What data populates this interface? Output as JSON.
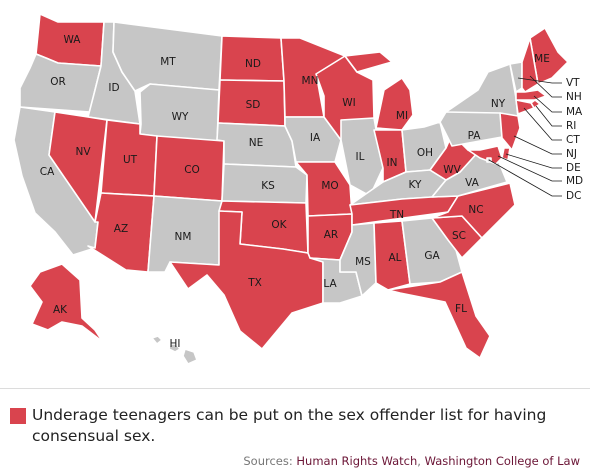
{
  "colors": {
    "highlight": "#d9444e",
    "other": "#c6c6c6",
    "source_link": "#6b1536"
  },
  "states": [
    {
      "abbr": "WA",
      "label": "WA",
      "highlighted": true
    },
    {
      "abbr": "OR",
      "label": "OR",
      "highlighted": false
    },
    {
      "abbr": "CA",
      "label": "CA",
      "highlighted": false
    },
    {
      "abbr": "ID",
      "label": "ID",
      "highlighted": false
    },
    {
      "abbr": "NV",
      "label": "NV",
      "highlighted": true
    },
    {
      "abbr": "MT",
      "label": "MT",
      "highlighted": false
    },
    {
      "abbr": "WY",
      "label": "WY",
      "highlighted": false
    },
    {
      "abbr": "UT",
      "label": "UT",
      "highlighted": true
    },
    {
      "abbr": "AZ",
      "label": "AZ",
      "highlighted": true
    },
    {
      "abbr": "CO",
      "label": "CO",
      "highlighted": true
    },
    {
      "abbr": "NM",
      "label": "NM",
      "highlighted": false
    },
    {
      "abbr": "ND",
      "label": "ND",
      "highlighted": true
    },
    {
      "abbr": "SD",
      "label": "SD",
      "highlighted": true
    },
    {
      "abbr": "NE",
      "label": "NE",
      "highlighted": false
    },
    {
      "abbr": "KS",
      "label": "KS",
      "highlighted": false
    },
    {
      "abbr": "OK",
      "label": "OK",
      "highlighted": true
    },
    {
      "abbr": "TX",
      "label": "TX",
      "highlighted": true
    },
    {
      "abbr": "MN",
      "label": "MN",
      "highlighted": true
    },
    {
      "abbr": "IA",
      "label": "IA",
      "highlighted": false
    },
    {
      "abbr": "MO",
      "label": "MO",
      "highlighted": true
    },
    {
      "abbr": "AR",
      "label": "AR",
      "highlighted": true
    },
    {
      "abbr": "LA",
      "label": "LA",
      "highlighted": false
    },
    {
      "abbr": "WI",
      "label": "WI",
      "highlighted": true
    },
    {
      "abbr": "IL",
      "label": "IL",
      "highlighted": false
    },
    {
      "abbr": "MI",
      "label": "MI",
      "highlighted": true
    },
    {
      "abbr": "IN",
      "label": "IN",
      "highlighted": true
    },
    {
      "abbr": "OH",
      "label": "OH",
      "highlighted": false
    },
    {
      "abbr": "KY",
      "label": "KY",
      "highlighted": false
    },
    {
      "abbr": "TN",
      "label": "TN",
      "highlighted": true
    },
    {
      "abbr": "MS",
      "label": "MS",
      "highlighted": false
    },
    {
      "abbr": "AL",
      "label": "AL",
      "highlighted": true
    },
    {
      "abbr": "GA",
      "label": "GA",
      "highlighted": false
    },
    {
      "abbr": "FL",
      "label": "FL",
      "highlighted": true
    },
    {
      "abbr": "SC",
      "label": "SC",
      "highlighted": true
    },
    {
      "abbr": "NC",
      "label": "NC",
      "highlighted": true
    },
    {
      "abbr": "VA",
      "label": "VA",
      "highlighted": false
    },
    {
      "abbr": "WV",
      "label": "WV",
      "highlighted": true
    },
    {
      "abbr": "PA",
      "label": "PA",
      "highlighted": false
    },
    {
      "abbr": "NY",
      "label": "NY",
      "highlighted": false
    },
    {
      "abbr": "ME",
      "label": "ME",
      "highlighted": true
    },
    {
      "abbr": "VT",
      "label": "VT",
      "highlighted": false
    },
    {
      "abbr": "NH",
      "label": "NH",
      "highlighted": true
    },
    {
      "abbr": "MA",
      "label": "MA",
      "highlighted": true
    },
    {
      "abbr": "RI",
      "label": "RI",
      "highlighted": true
    },
    {
      "abbr": "CT",
      "label": "CT",
      "highlighted": true
    },
    {
      "abbr": "NJ",
      "label": "NJ",
      "highlighted": true
    },
    {
      "abbr": "DE",
      "label": "DE",
      "highlighted": true
    },
    {
      "abbr": "MD",
      "label": "MD",
      "highlighted": true
    },
    {
      "abbr": "DC",
      "label": "DC",
      "highlighted": false
    },
    {
      "abbr": "AK",
      "label": "AK",
      "highlighted": true
    },
    {
      "abbr": "HI",
      "label": "HI",
      "highlighted": false
    }
  ],
  "legend": {
    "text": "Underage teenagers can be put on the sex offender list for having consensual sex."
  },
  "sources": {
    "prefix": "Sources: ",
    "items": [
      "Human Rights Watch",
      "Washington College of Law"
    ],
    "separator": ", "
  }
}
